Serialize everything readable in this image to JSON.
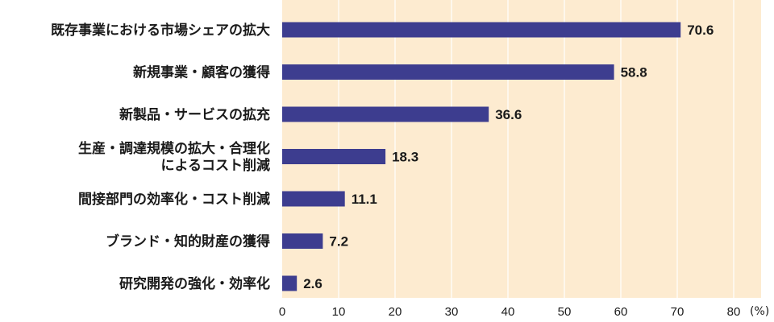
{
  "chart_data": {
    "type": "bar",
    "orientation": "horizontal",
    "categories": [
      "既存事業における市場シェアの拡大",
      "新規事業・顧客の獲得",
      "新製品・サービスの拡充",
      "生産・調達規模の拡大・合理化\nによるコスト削減",
      "間接部門の効率化・コスト削減",
      "ブランド・知的財産の獲得",
      "研究開発の強化・効率化"
    ],
    "values": [
      70.6,
      58.8,
      36.6,
      18.3,
      11.1,
      7.2,
      2.6
    ],
    "value_labels": [
      "70.6",
      "58.8",
      "36.6",
      "18.3",
      "11.1",
      "7.2",
      "2.6"
    ],
    "xlim": [
      0,
      85
    ],
    "ticks": [
      0,
      10,
      20,
      30,
      40,
      50,
      60,
      70,
      80
    ],
    "tick_labels": [
      "0",
      "10",
      "20",
      "30",
      "40",
      "50",
      "60",
      "70",
      "80"
    ],
    "unit": "(%)",
    "grid": true,
    "title": "",
    "xlabel": "",
    "ylabel": ""
  },
  "colors": {
    "bar": "#3d3d8f",
    "plot_background": "#fdebd0",
    "grid": "#ffffff"
  }
}
